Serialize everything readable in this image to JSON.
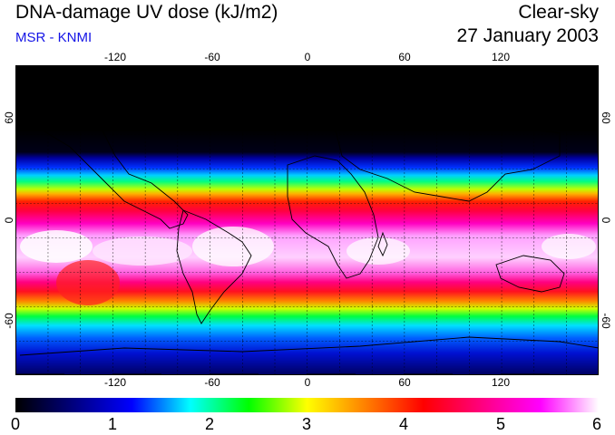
{
  "header": {
    "title": "DNA-damage UV dose (kJ/m2)",
    "subtitle": "MSR - KNMI",
    "condition": "Clear-sky",
    "date": "27 January 2003"
  },
  "map": {
    "lon_ticks": [
      "-120",
      "-60",
      "0",
      "60",
      "120"
    ],
    "lat_ticks": [
      "60",
      "0",
      "-60"
    ],
    "lat_ticks_right": [
      "60",
      "0",
      "-60"
    ],
    "lon_range": [
      -180,
      180
    ],
    "lat_range": [
      -90,
      90
    ],
    "grid_spacing_deg": 20
  },
  "colorbar": {
    "labels": [
      "0",
      "1",
      "2",
      "3",
      "4",
      "5",
      "6"
    ],
    "range": [
      0,
      6
    ],
    "stops": [
      "#000000",
      "#000080",
      "#0000ff",
      "#00ffff",
      "#00ff00",
      "#ffff00",
      "#ff8000",
      "#ff0000",
      "#ff0080",
      "#ff00ff",
      "#ffffff"
    ]
  }
}
